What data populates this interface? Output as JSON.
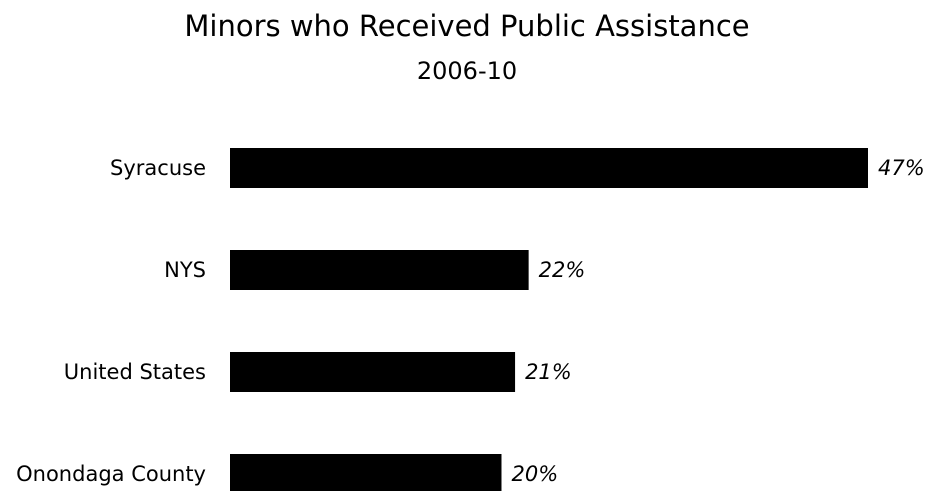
{
  "chart_data": {
    "type": "bar",
    "orientation": "horizontal",
    "title": "Minors who Received Public Assistance",
    "subtitle": "2006-10",
    "categories": [
      "Syracuse",
      "NYS",
      "United States",
      "Onondaga County"
    ],
    "values": [
      47,
      22,
      21,
      20
    ],
    "value_labels": [
      "47%",
      "22%",
      "21%",
      "20%"
    ],
    "unit": "%",
    "xlim": [
      0,
      47
    ],
    "grid": false,
    "legend": "none",
    "bar_color": "#000000"
  }
}
